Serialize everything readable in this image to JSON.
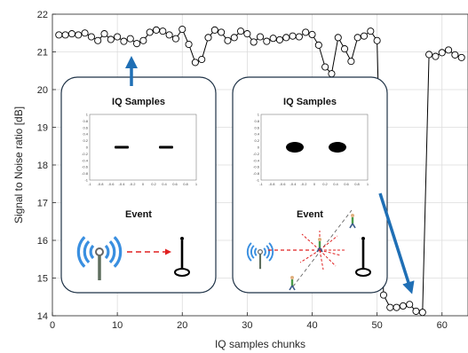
{
  "chart_data": {
    "type": "line",
    "xlabel": "IQ samples chunks",
    "ylabel": "Signal to Noise ratio [dB]",
    "xlim": [
      0,
      64
    ],
    "ylim": [
      14,
      22
    ],
    "x_ticks": [
      0,
      10,
      20,
      30,
      40,
      50,
      60
    ],
    "y_ticks": [
      14,
      15,
      16,
      17,
      18,
      19,
      20,
      21,
      22
    ],
    "grid": true,
    "series": [
      {
        "x": [
          1,
          2,
          3,
          4,
          5,
          6,
          7,
          8,
          9,
          10,
          11,
          12,
          13,
          14,
          15,
          16,
          17,
          18,
          19,
          20,
          21,
          22,
          23,
          24,
          25,
          26,
          27,
          28,
          29,
          30,
          31,
          32,
          33,
          34,
          35,
          36,
          37,
          38,
          39,
          40,
          41,
          42,
          43,
          44,
          45,
          46,
          47,
          48,
          49,
          50,
          51,
          52,
          53,
          54,
          55,
          56,
          57,
          58,
          59,
          60,
          61,
          62,
          63
        ],
        "y": [
          21.45,
          21.45,
          21.48,
          21.45,
          21.5,
          21.4,
          21.3,
          21.48,
          21.33,
          21.4,
          21.28,
          21.35,
          21.22,
          21.3,
          21.52,
          21.58,
          21.55,
          21.45,
          21.35,
          21.6,
          21.2,
          20.72,
          20.8,
          21.38,
          21.58,
          21.52,
          21.3,
          21.38,
          21.55,
          21.48,
          21.26,
          21.4,
          21.28,
          21.36,
          21.32,
          21.38,
          21.42,
          21.4,
          21.52,
          21.46,
          21.18,
          20.6,
          20.42,
          21.38,
          21.08,
          20.75,
          21.38,
          21.42,
          21.55,
          21.3,
          14.55,
          14.22,
          14.22,
          14.26,
          14.3,
          14.12,
          14.09,
          20.93,
          20.88,
          20.98,
          21.05,
          20.92,
          20.85
        ]
      }
    ],
    "insets": [
      {
        "title": "IQ Samples",
        "event_label": "Event",
        "mini_axis_ticks": [
          "-1",
          "-0.8",
          "-0.6",
          "-0.4",
          "-0.2",
          "0",
          "0.2",
          "0.4",
          "0.6",
          "0.8",
          "1"
        ]
      },
      {
        "title": "IQ Samples",
        "event_label": "Event",
        "mini_axis_ticks": [
          "-1",
          "-0.8",
          "-0.6",
          "-0.4",
          "-0.2",
          "0",
          "0.2",
          "0.4",
          "0.6",
          "0.8",
          "1"
        ]
      }
    ],
    "colors": {
      "line": "#000000",
      "arrow": "#1f6fb5",
      "signal": "#3a8fe0",
      "dashed_arrow": "#e02020",
      "person": "#4a9a4a"
    }
  }
}
